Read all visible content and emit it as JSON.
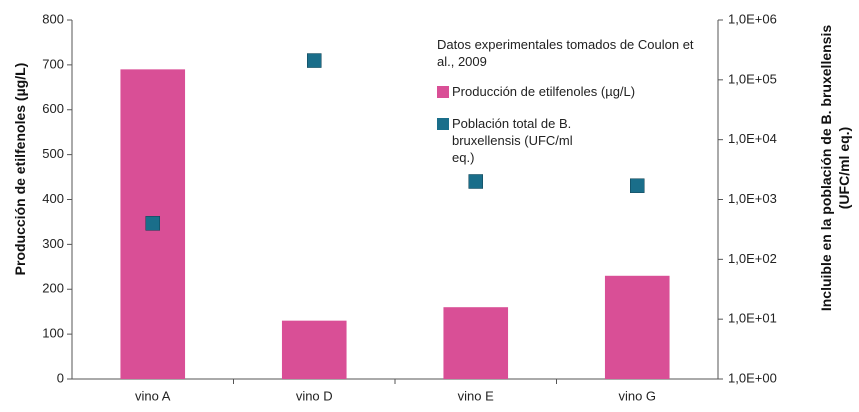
{
  "chart_data": {
    "type": "bar_scatter",
    "categories": [
      "vino A",
      "vino D",
      "vino E",
      "vino G"
    ],
    "ylabel": "Producción de etilfenoles (µg/L)",
    "y2label": "Incluible en la población de B. bruxellensis (UFC/ml eq.)",
    "annotation": "Datos experimentales tomados de Coulon et al., 2009",
    "ylim": [
      0,
      800
    ],
    "yticks": [
      0,
      100,
      200,
      300,
      400,
      500,
      600,
      700,
      800
    ],
    "y2lim": [
      1,
      1000000
    ],
    "y2scale": "log",
    "y2ticks": [
      {
        "value": 1,
        "label": "1,0E+00"
      },
      {
        "value": 10,
        "label": "1,0E+01"
      },
      {
        "value": 100,
        "label": "1,0E+02"
      },
      {
        "value": 1000,
        "label": "1,0E+03"
      },
      {
        "value": 10000,
        "label": "1,0E+04"
      },
      {
        "value": 100000,
        "label": "1,0E+05"
      },
      {
        "value": 1000000,
        "label": "1,0E+06"
      }
    ],
    "series": [
      {
        "name": "Producción de etilfenoles (µg/L)",
        "kind": "bar",
        "color": "#d94f96",
        "values": [
          690,
          130,
          160,
          230
        ]
      },
      {
        "name": "Población total de B. bruxellensis (UFC/ml eq.)",
        "kind": "scatter",
        "axis": "y2",
        "color": "#1a6e8a",
        "values": [
          400,
          210000,
          2000,
          1700
        ]
      }
    ]
  }
}
